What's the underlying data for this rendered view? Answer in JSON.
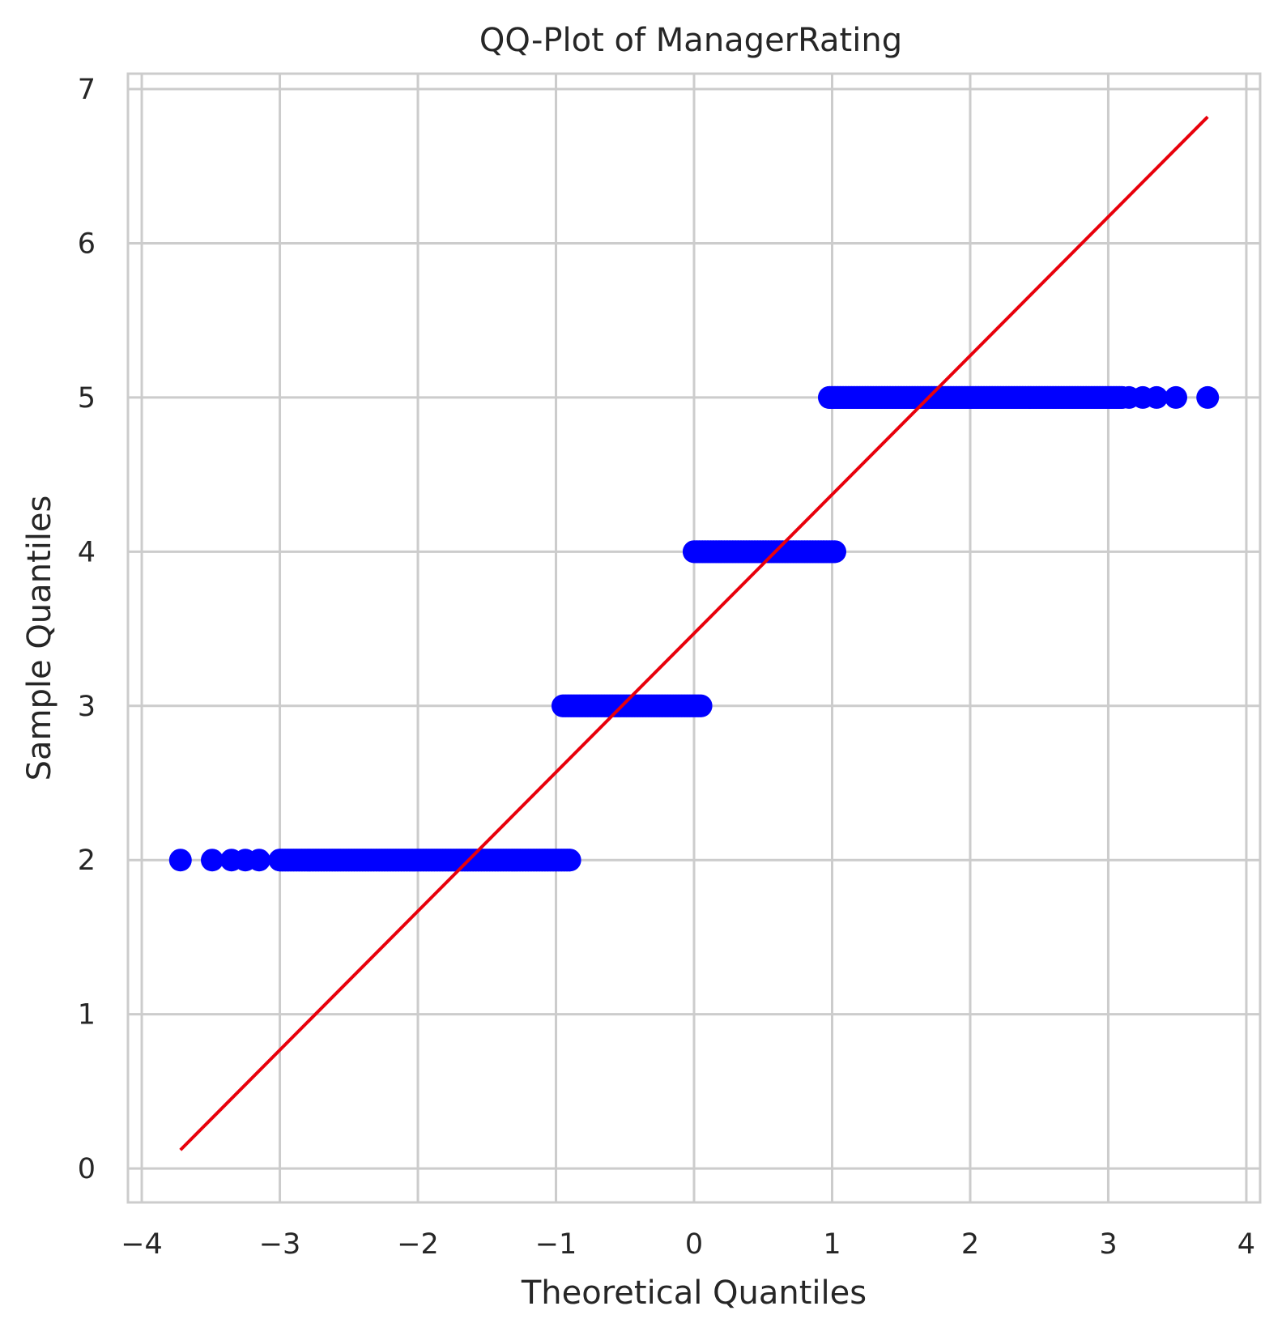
{
  "chart_data": {
    "type": "scatter",
    "title": "QQ-Plot of ManagerRating",
    "xlabel": "Theoretical Quantiles",
    "ylabel": "Sample Quantiles",
    "xlim": [
      -4.1,
      4.1
    ],
    "ylim": [
      -0.22,
      7.1
    ],
    "xticks": [
      -4,
      -3,
      -2,
      -1,
      0,
      1,
      2,
      3,
      4
    ],
    "xtick_labels": [
      "−4",
      "−3",
      "−2",
      "−1",
      "0",
      "1",
      "2",
      "3",
      "4"
    ],
    "yticks": [
      0,
      1,
      2,
      3,
      4,
      5,
      6,
      7
    ],
    "ytick_labels": [
      "0",
      "1",
      "2",
      "3",
      "4",
      "5",
      "6",
      "7"
    ],
    "grid": true,
    "colors": {
      "points": "#0000ff",
      "reference_line": "#e8000b",
      "grid": "#cccccc"
    },
    "series": [
      {
        "kind": "points",
        "groups": [
          {
            "y": 2,
            "x_range": [
              -3.0,
              -0.9
            ],
            "isolated_x": [
              -3.72,
              -3.49,
              -3.35,
              -3.25,
              -3.15
            ]
          },
          {
            "y": 3,
            "x_range": [
              -0.95,
              0.05
            ],
            "isolated_x": []
          },
          {
            "y": 4,
            "x_range": [
              0.0,
              1.02
            ],
            "isolated_x": []
          },
          {
            "y": 5,
            "x_range": [
              0.98,
              3.1
            ],
            "isolated_x": [
              3.15,
              3.25,
              3.35,
              3.49,
              3.72
            ]
          }
        ]
      },
      {
        "kind": "reference_line",
        "x": [
          -3.72,
          3.72
        ],
        "y": [
          0.12,
          6.82
        ]
      }
    ]
  }
}
